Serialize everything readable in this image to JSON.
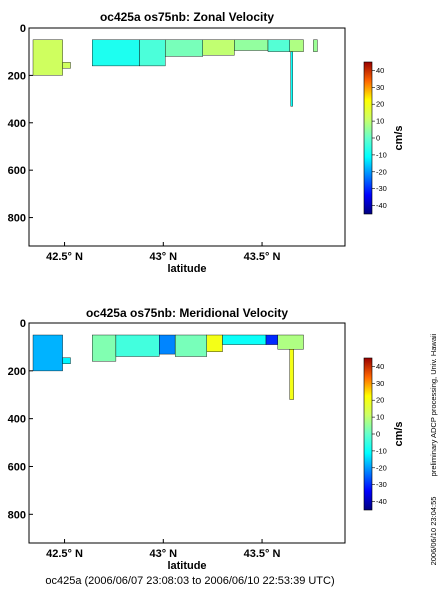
{
  "footer": "oc425a (2006/06/07 23:08:03 to 2006/06/10 22:53:39 UTC)",
  "side_note": "preliminary ADCP processing,   Univ. Hawaii",
  "side_date": "2006/06/10 23:04:55",
  "chart_data": [
    {
      "type": "heatmap",
      "title": "oc425a os75nb: Zonal Velocity",
      "xlabel": "latitude",
      "ylabel": "",
      "xlim": [
        42.32,
        43.92
      ],
      "ylim": [
        920,
        0
      ],
      "x_ticks": [
        42.5,
        43.0,
        43.5
      ],
      "x_tick_labels": [
        "42.5° N",
        "43° N",
        "43.5° N"
      ],
      "y_ticks": [
        0,
        200,
        400,
        600,
        800
      ],
      "y_tick_labels": [
        "0",
        "200",
        "400",
        "600",
        "800"
      ],
      "colorbar": {
        "label": "cm/s",
        "range": [
          -45,
          45
        ],
        "ticks": [
          40,
          30,
          20,
          10,
          0,
          -10,
          -20,
          -30,
          -40
        ],
        "tick_labels": [
          "40",
          "30",
          "20",
          "10",
          "0",
          "-10",
          "-20",
          "-30",
          "-40"
        ]
      },
      "regions": [
        {
          "lat": [
            42.34,
            42.49
          ],
          "depth": [
            50,
            200
          ],
          "value": 12
        },
        {
          "lat": [
            42.49,
            42.53
          ],
          "depth": [
            145,
            170
          ],
          "value": 12
        },
        {
          "lat": [
            42.64,
            42.88
          ],
          "depth": [
            50,
            160
          ],
          "value": -8
        },
        {
          "lat": [
            42.88,
            43.01
          ],
          "depth": [
            50,
            160
          ],
          "value": -3
        },
        {
          "lat": [
            43.01,
            43.2
          ],
          "depth": [
            50,
            120
          ],
          "value": 2
        },
        {
          "lat": [
            43.2,
            43.36
          ],
          "depth": [
            50,
            115
          ],
          "value": 10
        },
        {
          "lat": [
            43.36,
            43.53
          ],
          "depth": [
            50,
            95
          ],
          "value": 5
        },
        {
          "lat": [
            43.53,
            43.64
          ],
          "depth": [
            50,
            100
          ],
          "value": -2
        },
        {
          "lat": [
            43.64,
            43.71
          ],
          "depth": [
            50,
            100
          ],
          "value": 8
        },
        {
          "lat": [
            43.76,
            43.78
          ],
          "depth": [
            50,
            100
          ],
          "value": 6
        },
        {
          "lat": [
            43.645,
            43.655
          ],
          "depth": [
            100,
            330
          ],
          "value": -10
        }
      ]
    },
    {
      "type": "heatmap",
      "title": "oc425a os75nb: Meridional Velocity",
      "xlabel": "latitude",
      "ylabel": "",
      "xlim": [
        42.32,
        43.92
      ],
      "ylim": [
        920,
        0
      ],
      "x_ticks": [
        42.5,
        43.0,
        43.5
      ],
      "x_tick_labels": [
        "42.5° N",
        "43° N",
        "43.5° N"
      ],
      "y_ticks": [
        0,
        200,
        400,
        600,
        800
      ],
      "y_tick_labels": [
        "0",
        "200",
        "400",
        "600",
        "800"
      ],
      "colorbar": {
        "label": "cm/s",
        "range": [
          -45,
          45
        ],
        "ticks": [
          40,
          30,
          20,
          10,
          0,
          -10,
          -20,
          -30,
          -40
        ],
        "tick_labels": [
          "40",
          "30",
          "20",
          "10",
          "0",
          "-10",
          "-20",
          "-30",
          "-40"
        ]
      },
      "regions": [
        {
          "lat": [
            42.34,
            42.49
          ],
          "depth": [
            50,
            200
          ],
          "value": -18
        },
        {
          "lat": [
            42.49,
            42.53
          ],
          "depth": [
            145,
            170
          ],
          "value": -12
        },
        {
          "lat": [
            42.64,
            42.76
          ],
          "depth": [
            50,
            160
          ],
          "value": 3
        },
        {
          "lat": [
            42.76,
            42.98
          ],
          "depth": [
            50,
            140
          ],
          "value": -4
        },
        {
          "lat": [
            42.98,
            43.06
          ],
          "depth": [
            50,
            130
          ],
          "value": -22
        },
        {
          "lat": [
            43.06,
            43.22
          ],
          "depth": [
            50,
            140
          ],
          "value": 2
        },
        {
          "lat": [
            43.22,
            43.3
          ],
          "depth": [
            50,
            120
          ],
          "value": 20
        },
        {
          "lat": [
            43.3,
            43.52
          ],
          "depth": [
            50,
            90
          ],
          "value": -10
        },
        {
          "lat": [
            43.52,
            43.58
          ],
          "depth": [
            50,
            90
          ],
          "value": -30
        },
        {
          "lat": [
            43.58,
            43.71
          ],
          "depth": [
            50,
            110
          ],
          "value": 8
        },
        {
          "lat": [
            43.64,
            43.66
          ],
          "depth": [
            110,
            320
          ],
          "value": 20
        }
      ]
    }
  ]
}
